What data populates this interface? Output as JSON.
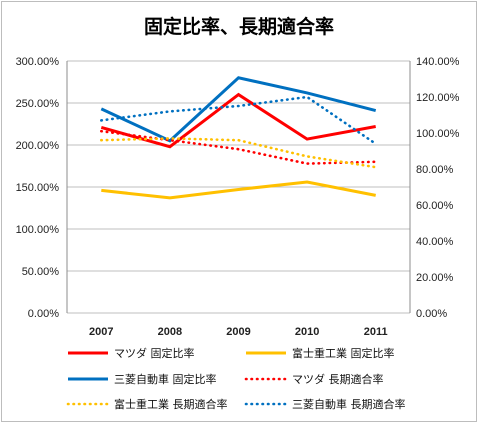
{
  "chart_data": {
    "type": "line",
    "title": "固定比率、長期適合率",
    "categories": [
      "2007",
      "2008",
      "2009",
      "2010",
      "2011"
    ],
    "y_left": {
      "range": [
        0,
        300
      ],
      "ticks": [
        "0.00%",
        "50.00%",
        "100.00%",
        "150.00%",
        "200.00%",
        "250.00%",
        "300.00%"
      ]
    },
    "y_right": {
      "range": [
        0,
        140
      ],
      "ticks": [
        "0.00%",
        "20.00%",
        "40.00%",
        "60.00%",
        "80.00%",
        "100.00%",
        "120.00%",
        "140.00%"
      ]
    },
    "grid": true,
    "legend_position": "bottom",
    "series": [
      {
        "name": "マツダ 固定比率",
        "values": [
          221,
          198,
          260,
          207,
          222
        ],
        "axis": "left",
        "color": "#ff0000",
        "style": "solid"
      },
      {
        "name": "富士重工業 固定比率",
        "values": [
          146,
          137,
          147,
          156,
          140
        ],
        "axis": "left",
        "color": "#ffc000",
        "style": "solid"
      },
      {
        "name": "三菱自動車 固定比率",
        "values": [
          243,
          205,
          280,
          262,
          241
        ],
        "axis": "left",
        "color": "#0070c0",
        "style": "solid"
      },
      {
        "name": "マツダ 長期適合率",
        "values": [
          101,
          96,
          91,
          83,
          84
        ],
        "axis": "right",
        "color": "#ff0000",
        "style": "dotted"
      },
      {
        "name": "富士重工業 長期適合率",
        "values": [
          96,
          97,
          96,
          87,
          81
        ],
        "axis": "right",
        "color": "#ffc000",
        "style": "dotted"
      },
      {
        "name": "三菱自動車 長期適合率",
        "values": [
          107,
          112,
          115,
          120,
          94
        ],
        "axis": "right",
        "color": "#0070c0",
        "style": "dotted"
      }
    ]
  }
}
